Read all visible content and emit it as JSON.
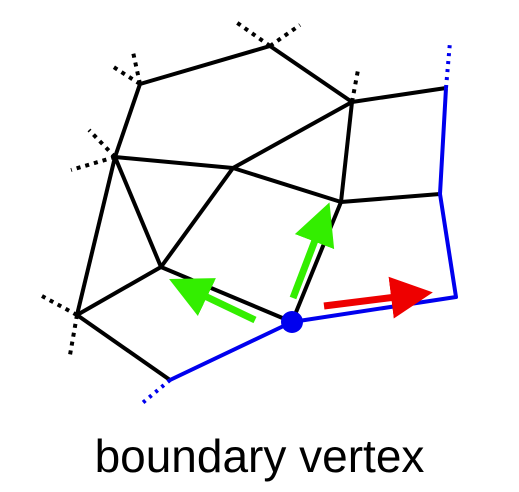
{
  "caption": "boundary vertex",
  "colors": {
    "mesh_edge": "#000000",
    "boundary_edge": "#0000ee",
    "boundary_vertex": "#0000ee",
    "interior_arrow": "#33ee00",
    "boundary_arrow": "#ee0000"
  }
}
